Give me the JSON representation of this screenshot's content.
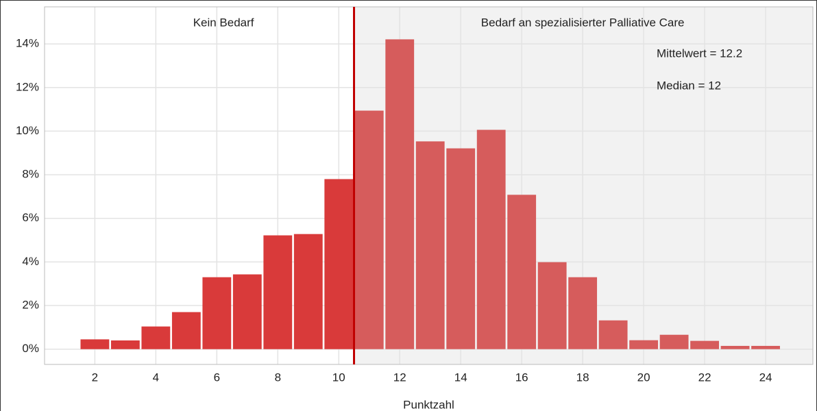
{
  "chart_data": {
    "type": "bar",
    "x": [
      2,
      3,
      4,
      5,
      6,
      7,
      8,
      9,
      10,
      11,
      12,
      13,
      14,
      15,
      16,
      17,
      18,
      19,
      20,
      21,
      22,
      23,
      24
    ],
    "values": [
      0.45,
      0.4,
      1.04,
      1.7,
      3.3,
      3.43,
      5.22,
      5.28,
      7.8,
      10.94,
      14.21,
      9.53,
      9.21,
      10.06,
      7.08,
      3.99,
      3.3,
      1.32,
      0.41,
      0.66,
      0.38,
      0.15,
      0.15
    ],
    "xlim": [
      0.35,
      25.55
    ],
    "ylim": [
      -0.7,
      15.7
    ],
    "xticks": [
      2,
      4,
      6,
      8,
      10,
      12,
      14,
      16,
      18,
      20,
      22,
      24
    ],
    "yticks": [
      {
        "value": 0,
        "label": "0%"
      },
      {
        "value": 2,
        "label": "2%"
      },
      {
        "value": 4,
        "label": "4%"
      },
      {
        "value": 6,
        "label": "6%"
      },
      {
        "value": 8,
        "label": "8%"
      },
      {
        "value": 10,
        "label": "10%"
      },
      {
        "value": 12,
        "label": "12%"
      },
      {
        "value": 14,
        "label": "14%"
      }
    ],
    "x_label": "Punktzahl",
    "threshold": 10.5,
    "threshold_color": "#c00000",
    "colors": {
      "below": "#d93a3a",
      "above": "#d65c5c"
    },
    "region_labels": [
      "Kein Bedarf",
      "Bedarf an spezialisierter Palliative Care"
    ],
    "annotations": [
      "Mittelwert = 12.2",
      "Median = 12"
    ],
    "grid": true
  }
}
